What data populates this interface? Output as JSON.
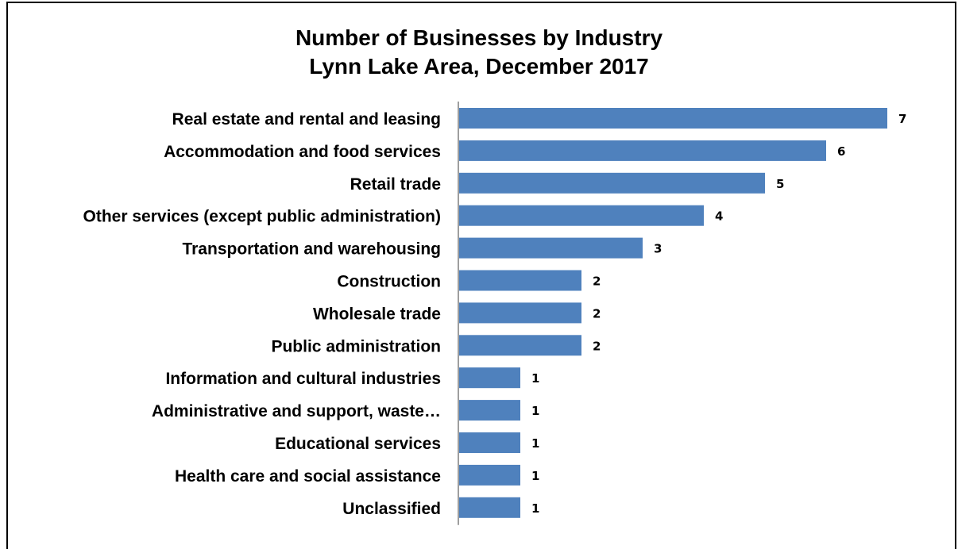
{
  "chart_data": {
    "type": "bar",
    "orientation": "horizontal",
    "title": "Number of Businesses by Industry",
    "subtitle": "Lynn Lake Area, December 2017",
    "categories": [
      "Real estate and rental and leasing",
      "Accommodation and food services",
      "Retail trade",
      "Other services (except public administration)",
      "Transportation and warehousing",
      "Construction",
      "Wholesale trade",
      "Public administration",
      "Information and cultural industries",
      "Administrative and support, waste…",
      "Educational services",
      "Health care and social assistance",
      "Unclassified"
    ],
    "values": [
      7,
      6,
      5,
      4,
      3,
      2,
      2,
      2,
      1,
      1,
      1,
      1,
      1
    ],
    "xlim": [
      0,
      7
    ],
    "grid": false,
    "legend": "none",
    "bar_color": "#4F81BD"
  }
}
